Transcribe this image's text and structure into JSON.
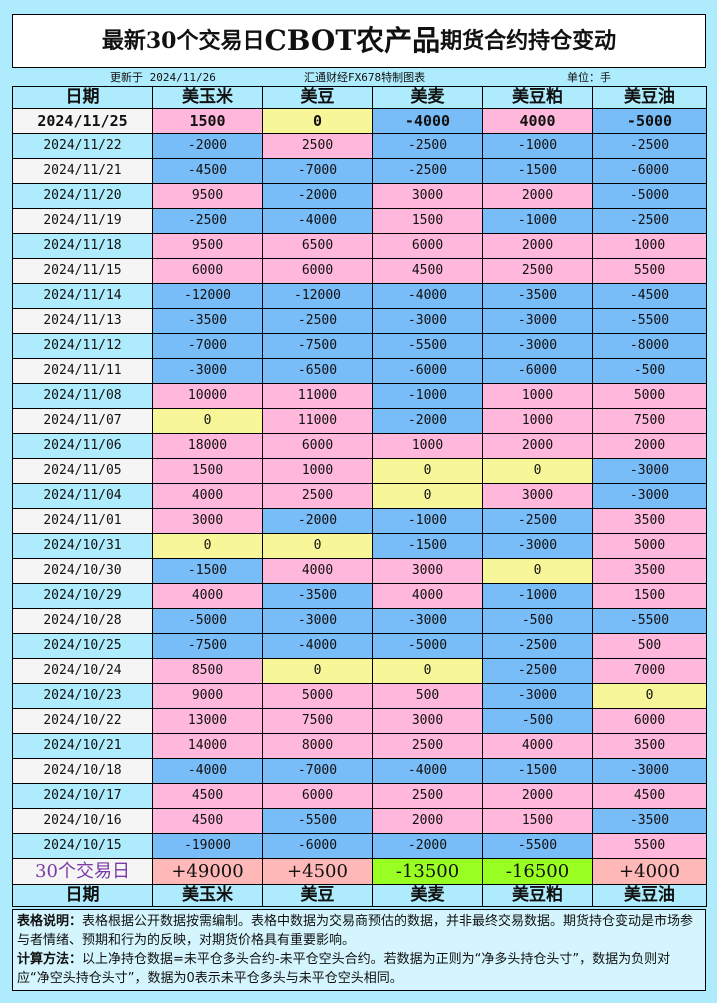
{
  "title": {
    "prefix": "最新30个交易日",
    "big": "CBOT农产品",
    "suffix": "期货合约持仓变动"
  },
  "subheader": {
    "updated": "更新于 2024/11/26",
    "source": "汇通财经FX678特制图表",
    "unit": "单位：手"
  },
  "columns": [
    "日期",
    "美玉米",
    "美豆",
    "美麦",
    "美豆粕",
    "美豆油"
  ],
  "rows": [
    [
      "2024/11/25",
      1500,
      0,
      -4000,
      4000,
      -5000
    ],
    [
      "2024/11/22",
      -2000,
      2500,
      -2500,
      -1000,
      -2500
    ],
    [
      "2024/11/21",
      -4500,
      -7000,
      -2500,
      -1500,
      -6000
    ],
    [
      "2024/11/20",
      9500,
      -2000,
      3000,
      2000,
      -5000
    ],
    [
      "2024/11/19",
      -2500,
      -4000,
      1500,
      -1000,
      -2500
    ],
    [
      "2024/11/18",
      9500,
      6500,
      6000,
      2000,
      1000
    ],
    [
      "2024/11/15",
      6000,
      6000,
      4500,
      2500,
      5500
    ],
    [
      "2024/11/14",
      -12000,
      -12000,
      -4000,
      -3500,
      -4500
    ],
    [
      "2024/11/13",
      -3500,
      -2500,
      -3000,
      -3000,
      -5500
    ],
    [
      "2024/11/12",
      -7000,
      -7500,
      -5500,
      -3000,
      -8000
    ],
    [
      "2024/11/11",
      -3000,
      -6500,
      -6000,
      -6000,
      -500
    ],
    [
      "2024/11/08",
      10000,
      11000,
      -1000,
      1000,
      5000
    ],
    [
      "2024/11/07",
      0,
      11000,
      -2000,
      1000,
      7500
    ],
    [
      "2024/11/06",
      18000,
      6000,
      1000,
      2000,
      2000
    ],
    [
      "2024/11/05",
      1500,
      1000,
      0,
      0,
      -3000
    ],
    [
      "2024/11/04",
      4000,
      2500,
      0,
      3000,
      -3000
    ],
    [
      "2024/11/01",
      3000,
      -2000,
      -1000,
      -2500,
      3500
    ],
    [
      "2024/10/31",
      0,
      0,
      -1500,
      -3000,
      5000
    ],
    [
      "2024/10/30",
      -1500,
      4000,
      3000,
      0,
      3500
    ],
    [
      "2024/10/29",
      4000,
      -3500,
      4000,
      -1000,
      1500
    ],
    [
      "2024/10/28",
      -5000,
      -3000,
      -3000,
      -500,
      -5500
    ],
    [
      "2024/10/25",
      -7500,
      -4000,
      -5000,
      -2500,
      500
    ],
    [
      "2024/10/24",
      8500,
      0,
      0,
      -2500,
      7000
    ],
    [
      "2024/10/23",
      9000,
      5000,
      500,
      -3000,
      0
    ],
    [
      "2024/10/22",
      13000,
      7500,
      3000,
      -500,
      6000
    ],
    [
      "2024/10/21",
      14000,
      8000,
      2500,
      4000,
      3500
    ],
    [
      "2024/10/18",
      -4000,
      -7000,
      -4000,
      -1500,
      -3000
    ],
    [
      "2024/10/17",
      4500,
      6000,
      2500,
      2000,
      4500
    ],
    [
      "2024/10/16",
      4500,
      -5500,
      2000,
      1500,
      -3500
    ],
    [
      "2024/10/15",
      -19000,
      -6000,
      -2000,
      -5500,
      5500
    ]
  ],
  "summary": {
    "label": "30个交易日",
    "values": [
      "+49000",
      "+4500",
      "-13500",
      "-16500",
      "+4000"
    ]
  },
  "notes": {
    "desc_label": "表格说明：",
    "desc": "表格根据公开数据按需编制。表格中数据为交易商预估的数据，并非最终交易数据。期货持仓变动是市场参与者情绪、预期和行为的反映，对期货价格具有重要影响。",
    "calc_label": "计算方法：",
    "calc": "以上净持仓数据=未平仓多头合约-未平仓空头合约。若数据为正则为“净多头持仓头寸”，数据为负则对应“净空头持仓头寸”，数据为0表示未平仓多头与未平仓空头相同。"
  },
  "colors": {
    "positive": "#ffb8dc",
    "negative": "#78bcf8",
    "zero": "#f7f79a",
    "sum_positive": "#ffb8b8",
    "sum_negative": "#99ff22",
    "summary_label": "#7a3aa8"
  }
}
